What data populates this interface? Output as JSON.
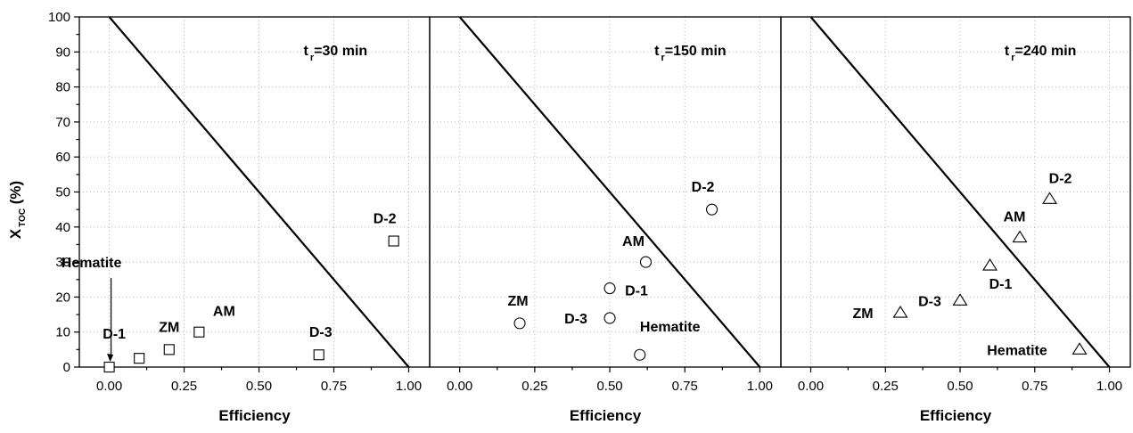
{
  "chart_data": {
    "type": "scatter",
    "ylabel_main": "X",
    "ylabel_sub": "TOC",
    "ylabel_unit": " (%)",
    "ylim": [
      0,
      100
    ],
    "yticks": [
      "0",
      "10",
      "20",
      "30",
      "40",
      "50",
      "60",
      "70",
      "80",
      "90",
      "100"
    ],
    "grid": true,
    "panels": [
      {
        "title_prefix": "t",
        "title_sub": "r",
        "title_suffix": "=30 min",
        "xlabel": "Efficiency",
        "xlim": [
          -0.1,
          1.07
        ],
        "xticks": [
          "0.00",
          "0.25",
          "0.50",
          "0.75",
          "1.00"
        ],
        "marker": "square",
        "line": [
          [
            0,
            100
          ],
          [
            1,
            0
          ]
        ],
        "points": [
          {
            "label": "Hematite",
            "x": 0.0,
            "y": 0
          },
          {
            "label": "D-1",
            "x": 0.1,
            "y": 2.5
          },
          {
            "label": "ZM",
            "x": 0.2,
            "y": 5
          },
          {
            "label": "AM",
            "x": 0.3,
            "y": 10
          },
          {
            "label": "D-3",
            "x": 0.7,
            "y": 3.5
          },
          {
            "label": "D-2",
            "x": 0.95,
            "y": 36
          }
        ]
      },
      {
        "title_prefix": "t",
        "title_sub": "r",
        "title_suffix": "=150 min",
        "xlabel": "Efficiency",
        "xlim": [
          -0.1,
          1.07
        ],
        "xticks": [
          "0.00",
          "0.25",
          "0.50",
          "0.75",
          "1.00"
        ],
        "marker": "circle",
        "line": [
          [
            0,
            100
          ],
          [
            1,
            0
          ]
        ],
        "points": [
          {
            "label": "ZM",
            "x": 0.2,
            "y": 12.5
          },
          {
            "label": "D-1",
            "x": 0.5,
            "y": 22.5
          },
          {
            "label": "D-3",
            "x": 0.5,
            "y": 14
          },
          {
            "label": "AM",
            "x": 0.62,
            "y": 30
          },
          {
            "label": "Hematite",
            "x": 0.6,
            "y": 3.5
          },
          {
            "label": "D-2",
            "x": 0.84,
            "y": 45
          }
        ]
      },
      {
        "title_prefix": "t",
        "title_sub": "r",
        "title_suffix": "=240 min",
        "xlabel": "Efficiency",
        "xlim": [
          -0.1,
          1.07
        ],
        "xticks": [
          "0.00",
          "0.25",
          "0.50",
          "0.75",
          "1.00"
        ],
        "marker": "triangle",
        "line": [
          [
            0,
            100
          ],
          [
            1,
            0
          ]
        ],
        "points": [
          {
            "label": "ZM",
            "x": 0.3,
            "y": 15.5
          },
          {
            "label": "D-3",
            "x": 0.5,
            "y": 19
          },
          {
            "label": "D-1",
            "x": 0.6,
            "y": 29
          },
          {
            "label": "AM",
            "x": 0.7,
            "y": 37
          },
          {
            "label": "D-2",
            "x": 0.8,
            "y": 48
          },
          {
            "label": "Hematite",
            "x": 0.9,
            "y": 5
          }
        ]
      }
    ]
  }
}
